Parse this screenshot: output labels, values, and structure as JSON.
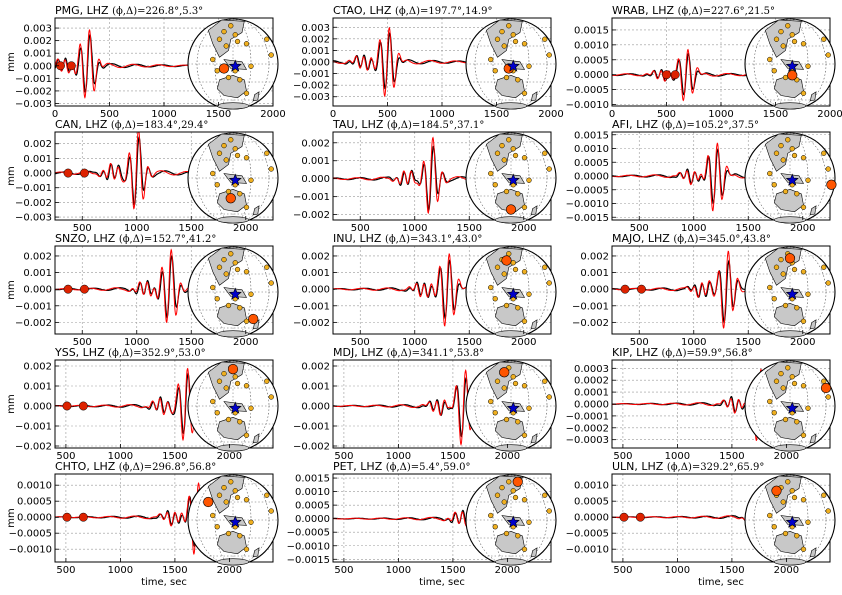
{
  "figure": {
    "ylabel": "mm",
    "xlabel": "time, sec",
    "colors": {
      "observed": "#000000",
      "synthetic": "#ff0000",
      "marker": "#dd2200",
      "station": "#f0b020",
      "active_station": "#ff5500",
      "event_star": "#0000cc",
      "land": "#c8c8c8"
    }
  },
  "chart_data": [
    {
      "type": "line",
      "station": "PMG",
      "title": "PMG, LHZ",
      "angles": "(ϕ,Δ)=226.8°,5.3°",
      "arrival": 300,
      "xlim": [
        0,
        2000
      ],
      "xticks": [
        0,
        500,
        1000,
        1500,
        2000
      ],
      "ylim": [
        -0.0032,
        0.0038
      ],
      "yticks": [
        -0.003,
        -0.002,
        -0.001,
        0.0,
        0.001,
        0.002,
        0.003
      ],
      "ytick_labels": [
        "−0.003",
        "−0.002",
        "−0.001",
        "0.000",
        "0.001",
        "0.002",
        "0.003"
      ],
      "amplitude": 0.003,
      "markers": [
        50,
        150
      ],
      "active_station": [
        -0.2,
        0.1
      ],
      "series": [
        {
          "name": "observed"
        },
        {
          "name": "synthetic"
        }
      ]
    },
    {
      "type": "line",
      "station": "CTAO",
      "title": "CTAO, LHZ",
      "angles": "(ϕ,Δ)=197.7°,14.9°",
      "arrival": 500,
      "xlim": [
        0,
        2000
      ],
      "xticks": [
        0,
        500,
        1000,
        1500,
        2000
      ],
      "ylim": [
        -0.0038,
        0.0038
      ],
      "yticks": [
        -0.003,
        -0.002,
        -0.001,
        0.0,
        0.001,
        0.002,
        0.003
      ],
      "ytick_labels": [
        "−0.003",
        "−0.002",
        "−0.001",
        "0.000",
        "0.001",
        "0.002",
        "0.003"
      ],
      "amplitude": 0.0033,
      "markers": [],
      "active_station": [
        -0.05,
        0.1
      ],
      "series": [
        {
          "name": "observed"
        },
        {
          "name": "synthetic"
        }
      ]
    },
    {
      "type": "line",
      "station": "WRAB",
      "title": "WRAB, LHZ",
      "angles": "(ϕ,Δ)=227.6°,21.5°",
      "arrival": 680,
      "xlim": [
        0,
        2000
      ],
      "xticks": [
        0,
        500,
        1000,
        1500,
        2000
      ],
      "ylim": [
        -0.00105,
        0.0019
      ],
      "yticks": [
        -0.001,
        -0.0005,
        0.0,
        0.0005,
        0.001,
        0.0015
      ],
      "ytick_labels": [
        "−0.0010",
        "−0.0005",
        "0.0000",
        "0.0005",
        "0.0010",
        "0.0015"
      ],
      "amplitude": 0.00095,
      "markers": [
        500,
        580
      ],
      "active_station": [
        0.05,
        0.25
      ],
      "series": [
        {
          "name": "observed"
        },
        {
          "name": "synthetic"
        }
      ]
    },
    {
      "type": "line",
      "station": "CAN",
      "title": "CAN, LHZ",
      "angles": "(ϕ,Δ)=183.4°,29.4°",
      "arrival": 1000,
      "xlim": [
        250,
        2250
      ],
      "xticks": [
        500,
        1000,
        1500,
        2000
      ],
      "ylim": [
        -0.0032,
        0.0028
      ],
      "yticks": [
        -0.003,
        -0.002,
        -0.001,
        0.0,
        0.001,
        0.002
      ],
      "ytick_labels": [
        "−0.003",
        "−0.002",
        "−0.001",
        "0.000",
        "0.001",
        "0.002"
      ],
      "amplitude": 0.0029,
      "markers": [
        370,
        520
      ],
      "active_station": [
        -0.05,
        0.45
      ],
      "series": [
        {
          "name": "observed"
        },
        {
          "name": "synthetic"
        }
      ]
    },
    {
      "type": "line",
      "station": "TAU",
      "title": "TAU, LHZ",
      "angles": "(ϕ,Δ)=184.5°,37.1°",
      "arrival": 1150,
      "xlim": [
        250,
        2250
      ],
      "xticks": [
        500,
        1000,
        1500,
        2000
      ],
      "ylim": [
        -0.0023,
        0.0026
      ],
      "yticks": [
        -0.002,
        -0.001,
        0.0,
        0.001,
        0.002
      ],
      "ytick_labels": [
        "−0.002",
        "−0.001",
        "0.000",
        "0.001",
        "0.002"
      ],
      "amplitude": 0.0022,
      "markers": [],
      "active_station": [
        0.0,
        0.7
      ],
      "series": [
        {
          "name": "observed"
        },
        {
          "name": "synthetic"
        }
      ]
    },
    {
      "type": "line",
      "station": "AFI",
      "title": "AFI, LHZ",
      "angles": "(ϕ,Δ)=105.2°,37.5°",
      "arrival": 1200,
      "xlim": [
        250,
        2250
      ],
      "xticks": [
        500,
        1000,
        1500,
        2000
      ],
      "ylim": [
        -0.0016,
        0.0016
      ],
      "yticks": [
        -0.0015,
        -0.001,
        -0.0005,
        0.0,
        0.0005,
        0.001,
        0.0015
      ],
      "ytick_labels": [
        "−0.0015",
        "−0.0010",
        "−0.0005",
        "0.0000",
        "0.0005",
        "0.0010",
        "0.0015"
      ],
      "amplitude": 0.00135,
      "markers": [],
      "active_station": [
        0.92,
        0.15
      ],
      "series": [
        {
          "name": "observed"
        },
        {
          "name": "synthetic"
        }
      ]
    },
    {
      "type": "line",
      "station": "SNZO",
      "title": "SNZO, LHZ",
      "angles": "(ϕ,Δ)=152.7°,41.2°",
      "arrival": 1300,
      "xlim": [
        250,
        2250
      ],
      "xticks": [
        500,
        1000,
        1500,
        2000
      ],
      "ylim": [
        -0.0027,
        0.0026
      ],
      "yticks": [
        -0.002,
        -0.001,
        0.0,
        0.001,
        0.002
      ],
      "ytick_labels": [
        "−0.002",
        "−0.001",
        "0.000",
        "0.001",
        "0.002"
      ],
      "amplitude": 0.0024,
      "markers": [
        370,
        520
      ],
      "active_station": [
        0.45,
        0.6
      ],
      "series": [
        {
          "name": "observed"
        },
        {
          "name": "synthetic"
        }
      ]
    },
    {
      "type": "line",
      "station": "INU",
      "title": "INU, LHZ",
      "angles": "(ϕ,Δ)=343.1°,43.0°",
      "arrival": 1300,
      "xlim": [
        250,
        2250
      ],
      "xticks": [
        500,
        1000,
        1500,
        2000
      ],
      "ylim": [
        -0.0027,
        0.0026
      ],
      "yticks": [
        -0.002,
        -0.001,
        0.0,
        0.001,
        0.002
      ],
      "ytick_labels": [
        "−0.002",
        "−0.001",
        "0.000",
        "0.001",
        "0.002"
      ],
      "amplitude": 0.0024,
      "markers": [],
      "active_station": [
        -0.1,
        -0.7
      ],
      "series": [
        {
          "name": "observed"
        },
        {
          "name": "synthetic"
        }
      ]
    },
    {
      "type": "line",
      "station": "MAJO",
      "title": "MAJO, LHZ",
      "angles": "(ϕ,Δ)=345.0°,43.8°",
      "arrival": 1300,
      "xlim": [
        250,
        2250
      ],
      "xticks": [
        500,
        1000,
        1500,
        2000
      ],
      "ylim": [
        -0.0027,
        0.0026
      ],
      "yticks": [
        -0.002,
        -0.001,
        0.0,
        0.001,
        0.002
      ],
      "ytick_labels": [
        "−0.002",
        "−0.001",
        "0.000",
        "0.001",
        "0.002"
      ],
      "amplitude": 0.0024,
      "markers": [
        370,
        520
      ],
      "active_station": [
        0.0,
        -0.75
      ],
      "series": [
        {
          "name": "observed"
        },
        {
          "name": "synthetic"
        }
      ]
    },
    {
      "type": "line",
      "station": "YSS",
      "title": "YSS, LHZ",
      "angles": "(ϕ,Δ)=352.9°,53.0°",
      "arrival": 1600,
      "xlim": [
        400,
        2400
      ],
      "xticks": [
        500,
        1000,
        1500,
        2000
      ],
      "ylim": [
        -0.0021,
        0.0023
      ],
      "yticks": [
        -0.002,
        -0.001,
        0.0,
        0.001,
        0.002
      ],
      "ytick_labels": [
        "−0.002",
        "−0.001",
        "0.000",
        "0.001",
        "0.002"
      ],
      "amplitude": 0.002,
      "markers": [
        510,
        660
      ],
      "active_station": [
        0.0,
        -0.82
      ],
      "series": [
        {
          "name": "observed"
        },
        {
          "name": "synthetic"
        }
      ]
    },
    {
      "type": "line",
      "station": "MDJ",
      "title": "MDJ, LHZ",
      "angles": "(ϕ,Δ)=341.1°,53.8°",
      "arrival": 1600,
      "xlim": [
        400,
        2400
      ],
      "xticks": [
        500,
        1000,
        1500,
        2000
      ],
      "ylim": [
        -0.0021,
        0.0023
      ],
      "yticks": [
        -0.002,
        -0.001,
        0.0,
        0.001,
        0.002
      ],
      "ytick_labels": [
        "−0.002",
        "−0.001",
        "0.000",
        "0.001",
        "0.002"
      ],
      "amplitude": 0.002,
      "markers": [],
      "active_station": [
        -0.15,
        -0.75
      ],
      "series": [
        {
          "name": "observed"
        },
        {
          "name": "synthetic"
        }
      ]
    },
    {
      "type": "line",
      "station": "KIP",
      "title": "KIP, LHZ",
      "angles": "(ϕ,Δ)=59.9°,56.8°",
      "arrival": 1750,
      "xlim": [
        400,
        2400
      ],
      "xticks": [
        500,
        1000,
        1500,
        2000
      ],
      "ylim": [
        -0.00037,
        0.00037
      ],
      "yticks": [
        -0.0003,
        -0.0002,
        -0.0001,
        0.0,
        0.0001,
        0.0002,
        0.0003
      ],
      "ytick_labels": [
        "−0.0003",
        "−0.0002",
        "−0.0001",
        "0.0000",
        "0.0001",
        "0.0002",
        "0.0003"
      ],
      "amplitude": 0.00033,
      "markers": [],
      "active_station": [
        0.8,
        -0.4
      ],
      "series": [
        {
          "name": "observed"
        },
        {
          "name": "synthetic"
        }
      ]
    },
    {
      "type": "line",
      "station": "CHTO",
      "title": "CHTO, LHZ",
      "angles": "(ϕ,Δ)=296.8°,56.8°",
      "arrival": 1700,
      "xlim": [
        400,
        2400
      ],
      "xticks": [
        500,
        1000,
        1500,
        2000
      ],
      "ylim": [
        -0.0014,
        0.00135
      ],
      "yticks": [
        -0.001,
        -0.0005,
        0.0,
        0.0005,
        0.001
      ],
      "ytick_labels": [
        "−0.0010",
        "−0.0005",
        "0.0000",
        "0.0005",
        "0.0010"
      ],
      "amplitude": 0.0012,
      "markers": [
        510,
        660
      ],
      "active_station": [
        -0.55,
        -0.4
      ],
      "series": [
        {
          "name": "observed"
        },
        {
          "name": "synthetic"
        }
      ]
    },
    {
      "type": "line",
      "station": "PET",
      "title": "PET, LHZ",
      "angles": "(ϕ,Δ)=5.4°,59.0°",
      "arrival": 1800,
      "xlim": [
        400,
        2400
      ],
      "xticks": [
        500,
        1000,
        1500,
        2000
      ],
      "ylim": [
        -0.0016,
        0.00165
      ],
      "yticks": [
        -0.0015,
        -0.001,
        -0.0005,
        0.0,
        0.0005,
        0.001,
        0.0015
      ],
      "ytick_labels": [
        "−0.0015",
        "−0.0010",
        "−0.0005",
        "0.0000",
        "0.0005",
        "0.0010",
        "0.0015"
      ],
      "amplitude": 0.0014,
      "markers": [],
      "active_station": [
        0.15,
        -0.85
      ],
      "series": [
        {
          "name": "observed"
        },
        {
          "name": "synthetic"
        }
      ]
    },
    {
      "type": "line",
      "station": "ULN",
      "title": "ULN, LHZ",
      "angles": "(ϕ,Δ)=329.2°,65.9°",
      "arrival": 1950,
      "xlim": [
        400,
        2400
      ],
      "xticks": [
        500,
        1000,
        1500,
        2000
      ],
      "ylim": [
        -0.0014,
        0.00135
      ],
      "yticks": [
        -0.001,
        -0.0005,
        0.0,
        0.0005,
        0.001
      ],
      "ytick_labels": [
        "−0.0010",
        "−0.0005",
        "0.0000",
        "0.0005",
        "0.0010"
      ],
      "amplitude": 0.0012,
      "markers": [
        510,
        660
      ],
      "active_station": [
        -0.3,
        -0.65
      ],
      "series": [
        {
          "name": "observed"
        },
        {
          "name": "synthetic"
        }
      ]
    }
  ]
}
